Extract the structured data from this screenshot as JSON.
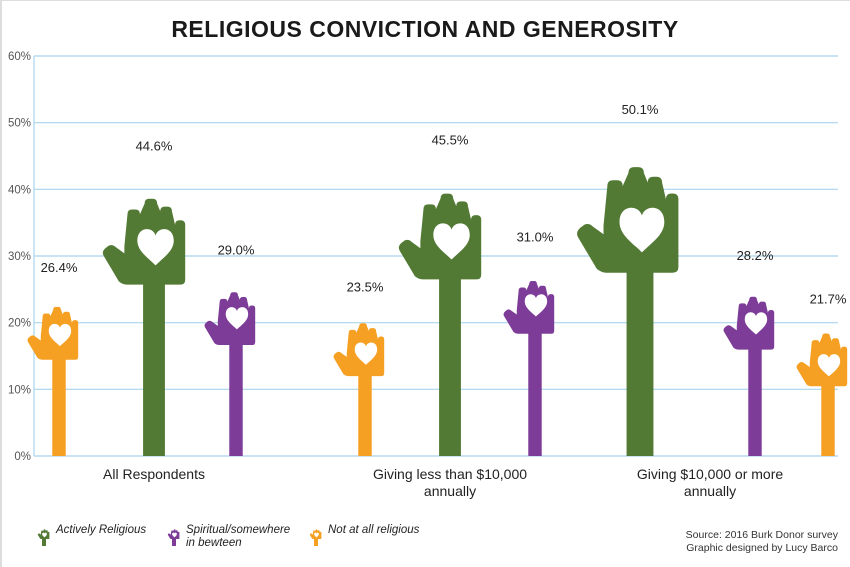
{
  "title": "RELIGIOUS CONVICTION AND GENEROSITY",
  "colors": {
    "actively_religious": "#537a34",
    "spiritual": "#7d3c98",
    "not_religious": "#f5a023",
    "grid": "#a8d4ec",
    "heart": "#ffffff"
  },
  "chart_data": {
    "type": "bar",
    "title": "RELIGIOUS CONVICTION AND GENEROSITY",
    "categories": [
      "All Respondents",
      "Giving less than $10,000 annually",
      "Giving $10,000 or more annually"
    ],
    "series": [
      {
        "name": "Actively Religious",
        "values": [
          44.6,
          45.5,
          50.1
        ],
        "labels": [
          "44.6%",
          "45.5%",
          "50.1%"
        ]
      },
      {
        "name": "Spiritual/somewhere in bewteen",
        "values": [
          29.0,
          31.0,
          28.2
        ],
        "labels": [
          "29.0%",
          "31.0%",
          "28.2%"
        ]
      },
      {
        "name": "Not at all religious",
        "values": [
          26.4,
          23.5,
          21.7
        ],
        "labels": [
          "26.4%",
          "23.5%",
          "21.7%"
        ]
      }
    ],
    "bar_order": [
      [
        "Not at all religious",
        "Actively Religious",
        "Spiritual/somewhere in bewteen"
      ],
      [
        "Not at all religious",
        "Actively Religious",
        "Spiritual/somewhere in bewteen"
      ],
      [
        "Actively Religious",
        "Spiritual/somewhere in bewteen",
        "Not at all religious"
      ]
    ],
    "y_ticks": [
      "0%",
      "10%",
      "20%",
      "30%",
      "40%",
      "50%",
      "60%"
    ],
    "ylim": [
      0,
      60
    ],
    "grid": true,
    "bar_style": "raised hand icons with heart",
    "legend_position": "bottom-left"
  },
  "category_labels": [
    [
      "All Respondents"
    ],
    [
      "Giving less than $10,000",
      "annually"
    ],
    [
      "Giving $10,000 or more",
      "annually"
    ]
  ],
  "legend": [
    {
      "label_lines": [
        "Actively Religious"
      ],
      "icon": "hand-icon"
    },
    {
      "label_lines": [
        "Spiritual/somewhere",
        "in bewteen"
      ],
      "icon": "hand-icon"
    },
    {
      "label_lines": [
        "Not at all religious"
      ],
      "icon": "hand-icon"
    }
  ],
  "source": {
    "line1": "Source: 2016 Burk Donor survey",
    "line2": "Graphic designed by Lucy Barco"
  }
}
